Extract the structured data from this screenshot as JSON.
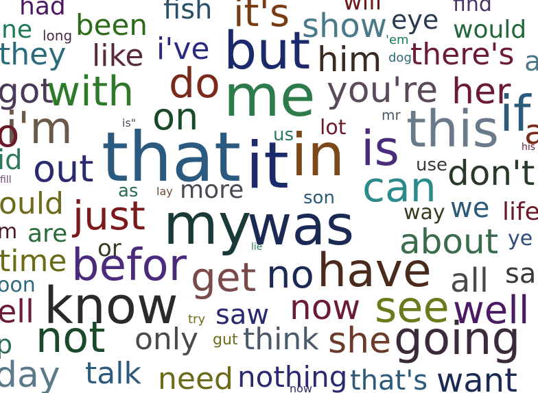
{
  "words": [
    {
      "text": "had",
      "color": "#4b1a63",
      "size": 36
    },
    {
      "text": "fish",
      "color": "#2b4f66",
      "size": 40
    },
    {
      "text": "it's",
      "color": "#7a3b12",
      "size": 56
    },
    {
      "text": "will",
      "color": "#6b1a1a",
      "size": 34
    },
    {
      "text": "find",
      "color": "#4a3466",
      "size": 30
    },
    {
      "text": "ne",
      "color": "#1a7a52",
      "size": 36
    },
    {
      "text": "long",
      "color": "#4a2a44",
      "size": 20
    },
    {
      "text": "been",
      "color": "#2d6b1a",
      "size": 42
    },
    {
      "text": "show",
      "color": "#4a7a8a",
      "size": 48
    },
    {
      "text": "eye",
      "color": "#2c3a50",
      "size": 38
    },
    {
      "text": "would",
      "color": "#22663a",
      "size": 36
    },
    {
      "text": "they",
      "color": "#2b6b7a",
      "size": 44
    },
    {
      "text": "like",
      "color": "#5a2a3a",
      "size": 44
    },
    {
      "text": "i've",
      "color": "#2a2a80",
      "size": 44
    },
    {
      "text": "but",
      "color": "#1a2a6b",
      "size": 76
    },
    {
      "text": "him",
      "color": "#3a2a22",
      "size": 50
    },
    {
      "text": "'em",
      "color": "#1a7a52",
      "size": 18
    },
    {
      "text": "dog",
      "color": "#2b6b7a",
      "size": 18
    },
    {
      "text": "there's",
      "color": "#6b1a3a",
      "size": 44
    },
    {
      "text": "a",
      "color": "#4a7a8a",
      "size": 40
    },
    {
      "text": "got",
      "color": "#4a3a55",
      "size": 50
    },
    {
      "text": "with",
      "color": "#2d7a2a",
      "size": 60
    },
    {
      "text": "do",
      "color": "#7a2a1a",
      "size": 60
    },
    {
      "text": "me",
      "color": "#2d7a4a",
      "size": 84
    },
    {
      "text": "you're",
      "color": "#5a4a5a",
      "size": 52
    },
    {
      "text": "her",
      "color": "#6b1a3a",
      "size": 52
    },
    {
      "text": "if",
      "color": "#2b5a7a",
      "size": 72
    },
    {
      "text": "a",
      "color": "#7a2a1a",
      "size": 50
    },
    {
      "text": "i'm",
      "color": "#6b5a4a",
      "size": 64
    },
    {
      "text": "o",
      "color": "#6b1a2a",
      "size": 56
    },
    {
      "text": "on",
      "color": "#1a4a2a",
      "size": 54
    },
    {
      "text": "mr",
      "color": "#4a5a66",
      "size": 20
    },
    {
      "text": "this",
      "color": "#6a7a8a",
      "size": 74
    },
    {
      "text": "is\"",
      "color": "#4a4a5a",
      "size": 16
    },
    {
      "text": "us",
      "color": "#2a7a5a",
      "size": 26
    },
    {
      "text": "lot",
      "color": "#6b1a2a",
      "size": 30
    },
    {
      "text": "that",
      "color": "#2b5a80",
      "size": 100
    },
    {
      "text": "it",
      "color": "#1a2a6b",
      "size": 94
    },
    {
      "text": "in",
      "color": "#7a4a1a",
      "size": 86
    },
    {
      "text": "is",
      "color": "#4a2a7a",
      "size": 70
    },
    {
      "text": "his",
      "color": "#6b1a3a",
      "size": 14
    },
    {
      "text": "id",
      "color": "#2d7a5a",
      "size": 40
    },
    {
      "text": "out",
      "color": "#2a2a70",
      "size": 54
    },
    {
      "text": "use",
      "color": "#3a3a3a",
      "size": 26
    },
    {
      "text": "don't",
      "color": "#2a3a2a",
      "size": 50
    },
    {
      "text": "can",
      "color": "#2b8a8a",
      "size": 60
    },
    {
      "text": "fill",
      "color": "#6b4a6a",
      "size": 14
    },
    {
      "text": "as",
      "color": "#2b6b5a",
      "size": 26
    },
    {
      "text": "lay",
      "color": "#6b4a3a",
      "size": 16
    },
    {
      "text": "more",
      "color": "#4a4a55",
      "size": 36
    },
    {
      "text": "son",
      "color": "#2b5a7a",
      "size": 26
    },
    {
      "text": "ould",
      "color": "#6b6b1a",
      "size": 44
    },
    {
      "text": "just",
      "color": "#7a1a1a",
      "size": 58
    },
    {
      "text": "we",
      "color": "#2b5a7a",
      "size": 40
    },
    {
      "text": "life",
      "color": "#6b1a2a",
      "size": 36
    },
    {
      "text": "way",
      "color": "#3a3a22",
      "size": 30
    },
    {
      "text": "my",
      "color": "#1a3a3a",
      "size": 82
    },
    {
      "text": "was",
      "color": "#1a2a55",
      "size": 80
    },
    {
      "text": "m",
      "color": "#4a1a2a",
      "size": 30
    },
    {
      "text": "are",
      "color": "#2b6b3a",
      "size": 36
    },
    {
      "text": "about",
      "color": "#3a6b4a",
      "size": 50
    },
    {
      "text": "ye",
      "color": "#2d4a7a",
      "size": 30
    },
    {
      "text": "or",
      "color": "#3a3a22",
      "size": 34
    },
    {
      "text": "lie",
      "color": "#2a7a5a",
      "size": 14
    },
    {
      "text": "time",
      "color": "#6b6b1a",
      "size": 44
    },
    {
      "text": "befor",
      "color": "#4a2a7a",
      "size": 64
    },
    {
      "text": "have",
      "color": "#4a2a1a",
      "size": 68
    },
    {
      "text": "no",
      "color": "#1a2a55",
      "size": 56
    },
    {
      "text": "get",
      "color": "#7a4a4a",
      "size": 58
    },
    {
      "text": "all",
      "color": "#4a4a4a",
      "size": 48
    },
    {
      "text": "sai",
      "color": "#3a3a3a",
      "size": 40
    },
    {
      "text": "oon",
      "color": "#2b6b7a",
      "size": 30
    },
    {
      "text": "know",
      "color": "#2a2a2a",
      "size": 74
    },
    {
      "text": "now",
      "color": "#6b1a3a",
      "size": 50
    },
    {
      "text": "see",
      "color": "#6b7a1a",
      "size": 62
    },
    {
      "text": "well",
      "color": "#4a1a63",
      "size": 56
    },
    {
      "text": "ell",
      "color": "#6b1a3a",
      "size": 46
    },
    {
      "text": "try",
      "color": "#6b6b1a",
      "size": 18
    },
    {
      "text": "saw",
      "color": "#2a2a70",
      "size": 40
    },
    {
      "text": "not",
      "color": "#1a4a2a",
      "size": 62
    },
    {
      "text": "only",
      "color": "#4a4a4a",
      "size": 44
    },
    {
      "text": "gut",
      "color": "#6b6b1a",
      "size": 22
    },
    {
      "text": "think",
      "color": "#4a5a6b",
      "size": 44
    },
    {
      "text": "she",
      "color": "#6b3a2a",
      "size": 52
    },
    {
      "text": "going",
      "color": "#3a2a3a",
      "size": 66
    },
    {
      "text": "p",
      "color": "#2b6b5a",
      "size": 38
    },
    {
      "text": "day",
      "color": "#5a7a8a",
      "size": 52
    },
    {
      "text": "talk",
      "color": "#2b5a7a",
      "size": 44
    },
    {
      "text": "need",
      "color": "#6b6b1a",
      "size": 44
    },
    {
      "text": "nothing",
      "color": "#2a2a70",
      "size": 42
    },
    {
      "text": "that's",
      "color": "#2b5a7a",
      "size": 40
    },
    {
      "text": "want",
      "color": "#1a2a55",
      "size": 48
    },
    {
      "text": "now",
      "color": "#2a2a70",
      "size": 16
    }
  ]
}
